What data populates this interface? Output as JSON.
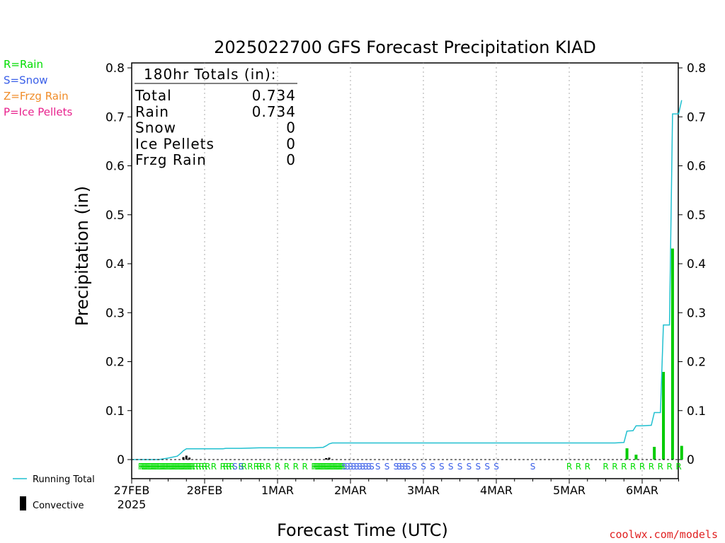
{
  "chart_data": {
    "type": "bar",
    "title": "2025022700 GFS Forecast Precipitation KIAD",
    "xlabel": "Forecast Time (UTC)",
    "ylabel": "Precipitation (in)",
    "ylim": [
      0,
      0.8
    ],
    "y_ticks": [
      "0",
      "0.1",
      "0.2",
      "0.3",
      "0.4",
      "0.5",
      "0.6",
      "0.7",
      "0.8"
    ],
    "y_ticks_right": [
      "0",
      "0.1",
      "0.2",
      "0.3",
      "0.4",
      "0.5",
      "0.6",
      "0.7",
      "0.8"
    ],
    "x_ticks": [
      {
        "label": "27FEB",
        "sublabel": "2025",
        "hour": 0
      },
      {
        "label": "28FEB",
        "hour": 24
      },
      {
        "label": "1MAR",
        "hour": 48
      },
      {
        "label": "2MAR",
        "hour": 72
      },
      {
        "label": "3MAR",
        "hour": 96
      },
      {
        "label": "4MAR",
        "hour": 120
      },
      {
        "label": "5MAR",
        "hour": 144
      },
      {
        "label": "6MAR",
        "hour": 168
      }
    ],
    "xlim_hours": [
      0,
      180
    ],
    "grid": "vertical dotted at day boundaries",
    "legend": [
      {
        "label": "R=Rain",
        "color": "#00dd00"
      },
      {
        "label": "S=Snow",
        "color": "#3a5fe8"
      },
      {
        "label": "Z=Frzg Rain",
        "color": "#f08c28"
      },
      {
        "label": "P=Ice Pellets",
        "color": "#e8208c"
      }
    ],
    "bottom_legend": {
      "running_total": "Running Total",
      "convective": "Convective"
    },
    "totals_box": {
      "header": "180hr Totals (in):",
      "rows": [
        {
          "label": "Total",
          "value": "0.734"
        },
        {
          "label": "Rain",
          "value": "0.734"
        },
        {
          "label": "Snow",
          "value": "0"
        },
        {
          "label": "Ice Pellets",
          "value": "0"
        },
        {
          "label": "Frzg Rain",
          "value": "0"
        }
      ]
    },
    "series": [
      {
        "name": "Running Total",
        "color": "#20c0d0",
        "points": [
          [
            0,
            0
          ],
          [
            9,
            0
          ],
          [
            12,
            0.003
          ],
          [
            15,
            0.007
          ],
          [
            16,
            0.012
          ],
          [
            17,
            0.018
          ],
          [
            18,
            0.022
          ],
          [
            20,
            0.022
          ],
          [
            24,
            0.022
          ],
          [
            30,
            0.022
          ],
          [
            31,
            0.023
          ],
          [
            36,
            0.023
          ],
          [
            42,
            0.024
          ],
          [
            48,
            0.024
          ],
          [
            54,
            0.024
          ],
          [
            60,
            0.024
          ],
          [
            63,
            0.025
          ],
          [
            64,
            0.028
          ],
          [
            65,
            0.032
          ],
          [
            66,
            0.034
          ],
          [
            72,
            0.034
          ],
          [
            96,
            0.034
          ],
          [
            120,
            0.034
          ],
          [
            144,
            0.034
          ],
          [
            159,
            0.034
          ],
          [
            162,
            0.035
          ],
          [
            163,
            0.058
          ],
          [
            165,
            0.059
          ],
          [
            166,
            0.069
          ],
          [
            168,
            0.069
          ],
          [
            171,
            0.07
          ],
          [
            172,
            0.096
          ],
          [
            174,
            0.096
          ],
          [
            175,
            0.275
          ],
          [
            177,
            0.275
          ],
          [
            178,
            0.706
          ],
          [
            180,
            0.706
          ],
          [
            181,
            0.734
          ]
        ]
      },
      {
        "name": "Precipitation bars",
        "color": "#00cc00",
        "bars": [
          [
            163,
            0.023
          ],
          [
            166,
            0.01
          ],
          [
            172,
            0.026
          ],
          [
            175,
            0.179
          ],
          [
            178,
            0.431
          ],
          [
            181,
            0.028
          ]
        ]
      },
      {
        "name": "Convective",
        "color": "#000000",
        "bars": [
          [
            17,
            0.005
          ],
          [
            18,
            0.008
          ],
          [
            19,
            0.004
          ],
          [
            64,
            0.003
          ],
          [
            65,
            0.004
          ]
        ]
      }
    ],
    "ptype_markers": [
      {
        "t": "R",
        "h": [
          3,
          3.5,
          4,
          4.5,
          5,
          5.5,
          6,
          6.5,
          7,
          7.5,
          8,
          8.5,
          9,
          9.5,
          10,
          10.5,
          11,
          11.5,
          12,
          12.5,
          13,
          13.5,
          14,
          14.5,
          15,
          15.5,
          16,
          16.5,
          17,
          17.5,
          18,
          18.5,
          19,
          19.5,
          20,
          21,
          22,
          23,
          24,
          25,
          27,
          30,
          31,
          32,
          33,
          36,
          37,
          39,
          41,
          42,
          43,
          45,
          48,
          51,
          54,
          57,
          60,
          60.5,
          61,
          61.5,
          62,
          62.5,
          63,
          63.5,
          64,
          64.5,
          65,
          65.5,
          66,
          66.5,
          67,
          67.5,
          68,
          68.5,
          69,
          69.5,
          144,
          147,
          150,
          156,
          159,
          162,
          165,
          168,
          171,
          174,
          177,
          180
        ]
      },
      {
        "t": "S",
        "h": [
          34,
          36,
          70,
          71,
          72,
          73,
          74,
          75,
          76,
          77,
          78,
          79,
          81,
          84,
          87,
          88,
          89,
          90,
          91,
          93,
          96,
          99,
          102,
          105,
          108,
          111,
          114,
          117,
          120,
          132
        ]
      }
    ],
    "footer_credit": "coolwx.com/models"
  }
}
